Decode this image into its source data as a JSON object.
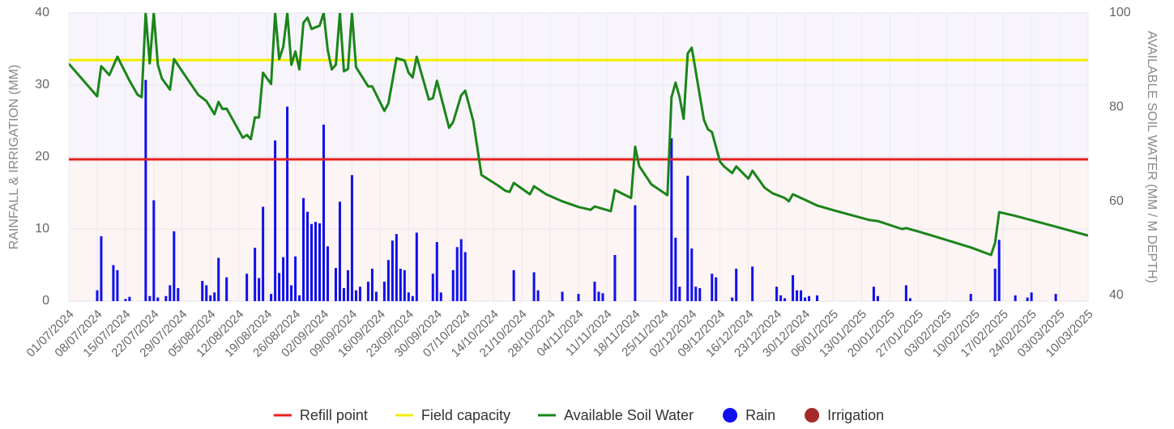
{
  "chart_data": {
    "type": "combo",
    "y_label": "RAINFALL & IRRIGATION (MM)",
    "y2_label": "AVAILABLE SOIL WATER (MM / M DEPTH)",
    "xlim": [
      "01/07/2024",
      "10/03/2025"
    ],
    "xticks": [
      "01/07/2024",
      "08/07/2024",
      "15/07/2024",
      "22/07/2024",
      "29/07/2024",
      "05/08/2024",
      "12/08/2024",
      "19/08/2024",
      "26/08/2024",
      "02/09/2024",
      "09/09/2024",
      "16/09/2024",
      "23/09/2024",
      "30/09/2024",
      "07/10/2024",
      "14/10/2024",
      "21/10/2024",
      "28/10/2024",
      "04/11/2024",
      "11/11/2024",
      "18/11/2024",
      "25/11/2024",
      "02/12/2024",
      "09/12/2024",
      "16/12/2024",
      "23/12/2024",
      "30/12/2024",
      "06/01/2025",
      "13/01/2025",
      "20/01/2025",
      "27/01/2025",
      "03/02/2025",
      "10/02/2025",
      "17/02/2025",
      "24/02/2025",
      "03/03/2025",
      "10/03/2025"
    ],
    "ylim": [
      0,
      40
    ],
    "yticks": [
      0,
      10,
      20,
      30,
      40
    ],
    "y2lim": [
      38.8,
      100
    ],
    "y2ticks": [
      40,
      60,
      80,
      100
    ],
    "grid": true,
    "legend": "bottom",
    "series": [
      {
        "name": "Refill point",
        "color": "#e8211f",
        "kind": "line",
        "axis": "y2",
        "x": [
          "01/07/2024",
          "10/03/2025"
        ],
        "values": [
          68.9,
          68.9
        ]
      },
      {
        "name": "Field capacity",
        "color": "#f2ee00",
        "kind": "line",
        "axis": "y2",
        "x": [
          "01/07/2024",
          "10/03/2025"
        ],
        "values": [
          90,
          90
        ]
      },
      {
        "name": "Available Soil Water",
        "color": "#1a851a",
        "kind": "line",
        "axis": "y2",
        "x": [
          "01/07/2024",
          "08/07/2024",
          "09/07/2024",
          "11/07/2024",
          "13/07/2024",
          "16/07/2024",
          "18/07/2024",
          "19/07/2024",
          "20/07/2024",
          "21/07/2024",
          "22/07/2024",
          "23/07/2024",
          "24/07/2024",
          "26/07/2024",
          "27/07/2024",
          "29/07/2024",
          "02/08/2024",
          "04/08/2024",
          "06/08/2024",
          "07/08/2024",
          "08/08/2024",
          "09/08/2024",
          "13/08/2024",
          "14/08/2024",
          "15/08/2024",
          "16/08/2024",
          "17/08/2024",
          "18/08/2024",
          "20/08/2024",
          "21/08/2024",
          "22/08/2024",
          "23/08/2024",
          "24/08/2024",
          "25/08/2024",
          "26/08/2024",
          "27/08/2024",
          "28/08/2024",
          "29/08/2024",
          "30/08/2024",
          "01/09/2024",
          "02/09/2024",
          "03/09/2024",
          "04/09/2024",
          "05/09/2024",
          "06/09/2024",
          "07/09/2024",
          "08/09/2024",
          "09/09/2024",
          "10/09/2024",
          "13/09/2024",
          "14/09/2024",
          "17/09/2024",
          "18/09/2024",
          "20/09/2024",
          "22/09/2024",
          "23/09/2024",
          "24/09/2024",
          "25/09/2024",
          "28/09/2024",
          "29/09/2024",
          "30/09/2024",
          "03/10/2024",
          "04/10/2024",
          "06/10/2024",
          "07/10/2024",
          "09/10/2024",
          "11/10/2024",
          "15/10/2024",
          "17/10/2024",
          "18/10/2024",
          "19/10/2024",
          "23/10/2024",
          "24/10/2024",
          "27/10/2024",
          "31/10/2024",
          "04/11/2024",
          "07/11/2024",
          "08/11/2024",
          "12/11/2024",
          "13/11/2024",
          "17/11/2024",
          "18/11/2024",
          "19/11/2024",
          "22/11/2024",
          "26/11/2024",
          "27/11/2024",
          "28/11/2024",
          "29/11/2024",
          "30/11/2024",
          "01/12/2024",
          "02/12/2024",
          "05/12/2024",
          "06/12/2024",
          "07/12/2024",
          "09/12/2024",
          "10/12/2024",
          "12/12/2024",
          "13/12/2024",
          "16/12/2024",
          "17/12/2024",
          "20/12/2024",
          "22/12/2024",
          "25/12/2024",
          "26/12/2024",
          "27/12/2024",
          "30/12/2024",
          "02/01/2025",
          "06/01/2025",
          "15/01/2025",
          "17/01/2025",
          "23/01/2025",
          "24/01/2025",
          "27/01/2025",
          "09/02/2025",
          "14/02/2025",
          "15/02/2025",
          "16/02/2025",
          "20/02/2025",
          "02/03/2025",
          "10/03/2025"
        ],
        "values": [
          89.2,
          82.3,
          88.7,
          86.8,
          90.7,
          85.6,
          82.6,
          82.1,
          100,
          89.3,
          100,
          89,
          86.1,
          83.7,
          90.2,
          87.6,
          82.6,
          81.3,
          78.5,
          81.1,
          79.6,
          79.7,
          73.5,
          74.1,
          73.2,
          77.8,
          77.8,
          87.3,
          84.9,
          100,
          90.2,
          92.8,
          100,
          89,
          91.8,
          88,
          97.9,
          99,
          96.6,
          97.3,
          100,
          92.1,
          88,
          89,
          100,
          87.6,
          88.1,
          100,
          88.5,
          84.4,
          84.4,
          79.2,
          80.8,
          90.4,
          89.9,
          87.3,
          86.3,
          90.7,
          81.6,
          81.9,
          85.6,
          75.6,
          76.8,
          82.5,
          83.5,
          77,
          65.6,
          63.4,
          62.2,
          62,
          63.9,
          61.5,
          63.2,
          61.5,
          60,
          58.8,
          58.2,
          58.9,
          57.9,
          62.4,
          60.7,
          71.6,
          67.5,
          63.6,
          61.3,
          82.1,
          85.2,
          82.1,
          77.5,
          91.4,
          92.6,
          77.3,
          75.3,
          74.7,
          68.4,
          67.4,
          66,
          67.4,
          64.8,
          66.5,
          62.9,
          61.7,
          60.7,
          60,
          61.5,
          60.3,
          59.1,
          58.1,
          56,
          55.8,
          54.1,
          54.3,
          53.6,
          50.2,
          48.6,
          51.2,
          57.7,
          56.9,
          54.6,
          52.7
        ]
      },
      {
        "name": "Rain",
        "color": "#1010ee",
        "kind": "bar",
        "axis": "y",
        "x": [
          "08/07/2024",
          "09/07/2024",
          "12/07/2024",
          "13/07/2024",
          "15/07/2024",
          "16/07/2024",
          "20/07/2024",
          "21/07/2024",
          "22/07/2024",
          "23/07/2024",
          "25/07/2024",
          "26/07/2024",
          "27/07/2024",
          "28/07/2024",
          "03/08/2024",
          "04/08/2024",
          "05/08/2024",
          "06/08/2024",
          "07/08/2024",
          "09/08/2024",
          "14/08/2024",
          "16/08/2024",
          "17/08/2024",
          "18/08/2024",
          "20/08/2024",
          "21/08/2024",
          "22/08/2024",
          "23/08/2024",
          "24/08/2024",
          "25/08/2024",
          "26/08/2024",
          "27/08/2024",
          "28/08/2024",
          "29/08/2024",
          "30/08/2024",
          "31/08/2024",
          "01/09/2024",
          "02/09/2024",
          "03/09/2024",
          "05/09/2024",
          "06/09/2024",
          "07/09/2024",
          "08/09/2024",
          "09/09/2024",
          "10/09/2024",
          "11/09/2024",
          "13/09/2024",
          "14/09/2024",
          "15/09/2024",
          "17/09/2024",
          "18/09/2024",
          "19/09/2024",
          "20/09/2024",
          "21/09/2024",
          "22/09/2024",
          "23/09/2024",
          "24/09/2024",
          "25/09/2024",
          "29/09/2024",
          "30/09/2024",
          "01/10/2024",
          "04/10/2024",
          "05/10/2024",
          "06/10/2024",
          "07/10/2024",
          "19/10/2024",
          "24/10/2024",
          "25/10/2024",
          "31/10/2024",
          "04/11/2024",
          "08/11/2024",
          "09/11/2024",
          "10/11/2024",
          "13/11/2024",
          "18/11/2024",
          "27/11/2024",
          "28/11/2024",
          "29/11/2024",
          "01/12/2024",
          "02/12/2024",
          "03/12/2024",
          "04/12/2024",
          "07/12/2024",
          "08/12/2024",
          "12/12/2024",
          "13/12/2024",
          "17/12/2024",
          "23/12/2024",
          "24/12/2024",
          "25/12/2024",
          "27/12/2024",
          "28/12/2024",
          "29/12/2024",
          "30/12/2024",
          "31/12/2024",
          "02/01/2025",
          "16/01/2025",
          "17/01/2025",
          "24/01/2025",
          "25/01/2025",
          "09/02/2025",
          "15/02/2025",
          "16/02/2025",
          "20/02/2025",
          "23/02/2025",
          "24/02/2025",
          "02/03/2025"
        ],
        "values": [
          1.5,
          9,
          5,
          4.3,
          0.3,
          0.6,
          30.7,
          0.7,
          14,
          0.5,
          0.7,
          2.2,
          9.7,
          1.8,
          2.8,
          2.2,
          0.8,
          1.2,
          6,
          3.3,
          3.8,
          7.4,
          3.2,
          13.1,
          1,
          22.3,
          3.9,
          6.1,
          27,
          2.2,
          6.2,
          0.8,
          14.3,
          12.4,
          10.7,
          11,
          10.8,
          24.5,
          7.6,
          4.6,
          13.8,
          1.8,
          4.3,
          17.5,
          1.5,
          2,
          2.7,
          4.5,
          1.3,
          2.7,
          5.7,
          8.4,
          9.3,
          4.5,
          4.3,
          1.2,
          0.7,
          9.5,
          3.8,
          8.2,
          1.2,
          4.3,
          7.5,
          8.6,
          6.8,
          4.3,
          4,
          1.5,
          1.3,
          1,
          2.7,
          1.3,
          1.1,
          6.4,
          13.3,
          22.6,
          8.8,
          2,
          17.4,
          7.3,
          2,
          1.8,
          3.8,
          3.3,
          0.5,
          4.5,
          4.8,
          2,
          0.8,
          0.4,
          3.6,
          1.5,
          1.5,
          0.5,
          0.7,
          0.8,
          2,
          0.7,
          2.2,
          0.4,
          1,
          4.5,
          8.5,
          0.8,
          0.5,
          1.2,
          1
        ]
      },
      {
        "name": "Irrigation",
        "color": "#a52a2a",
        "kind": "bar",
        "axis": "y",
        "x": [],
        "values": []
      }
    ]
  }
}
